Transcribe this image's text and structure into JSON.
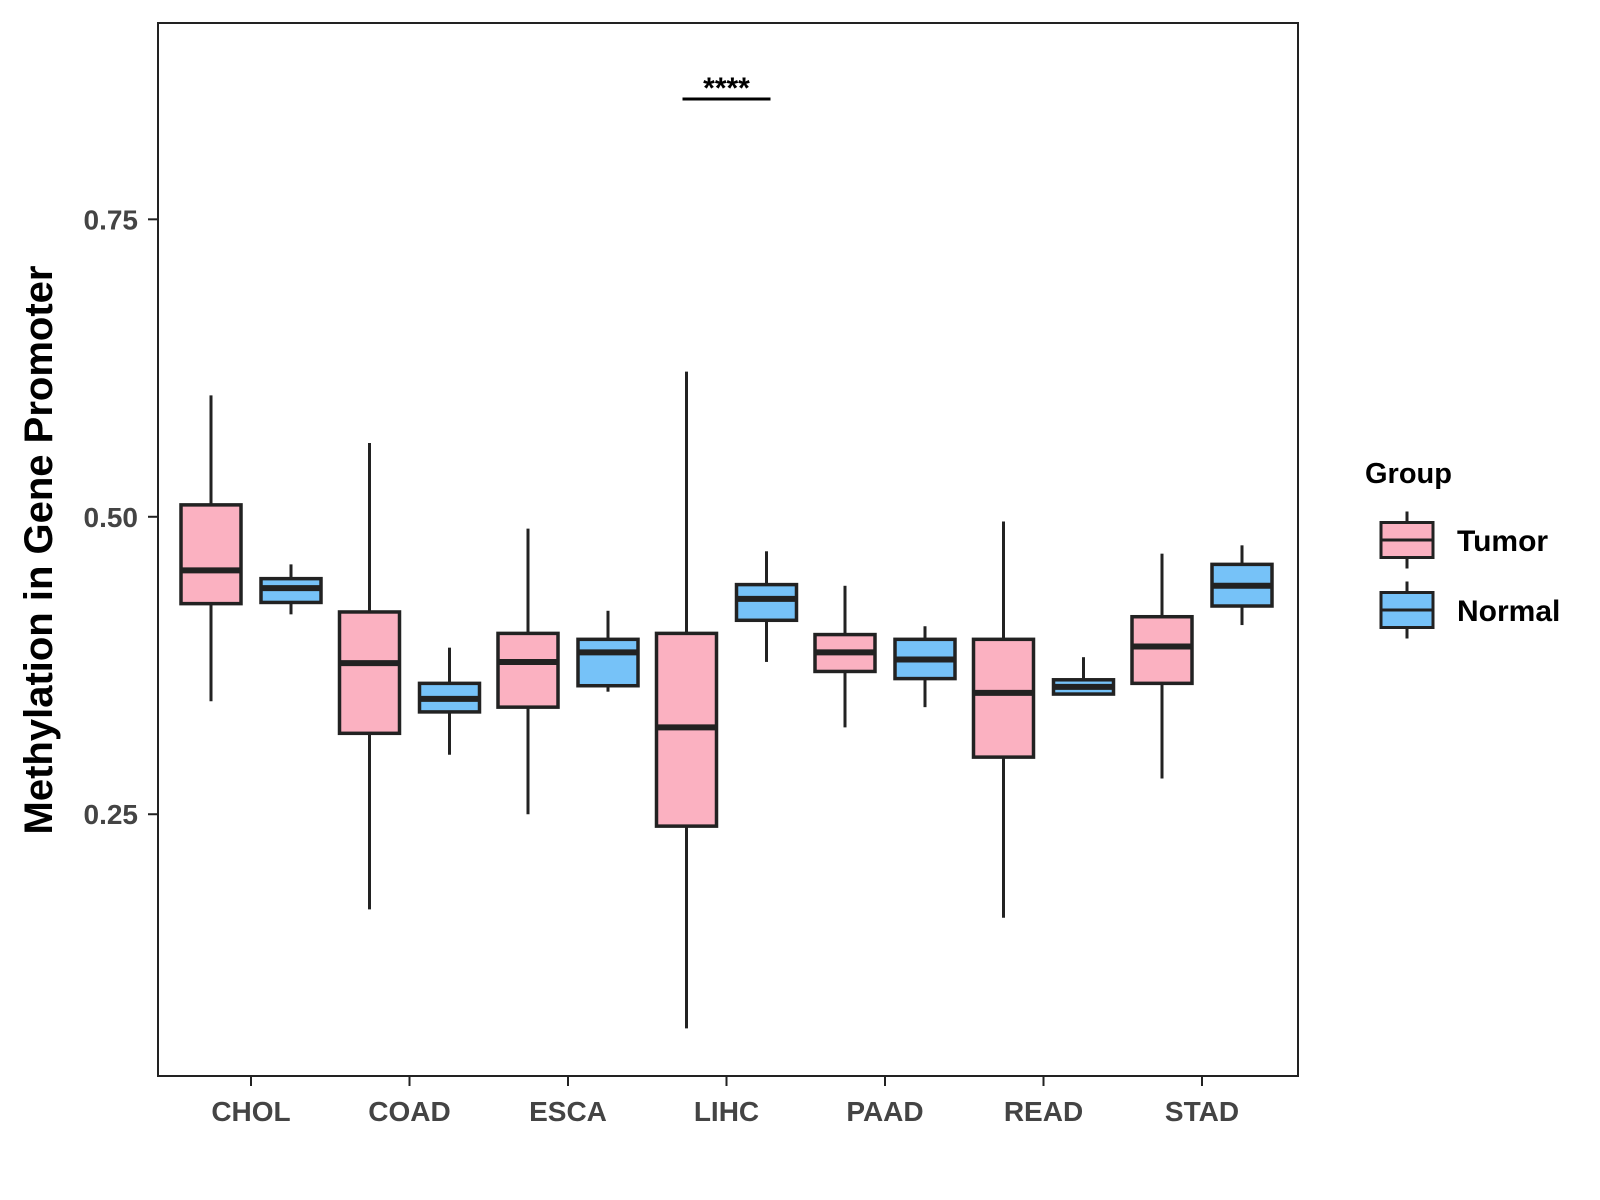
{
  "chart_data": {
    "type": "boxplot",
    "title": "",
    "xlabel": "",
    "ylabel": "Methylation in Gene Promoter",
    "ylim": [
      0.03,
      0.915
    ],
    "yticks": [
      {
        "value": 0.25,
        "label": "0.25"
      },
      {
        "value": 0.5,
        "label": "0.50"
      },
      {
        "value": 0.75,
        "label": "0.75"
      }
    ],
    "categories": [
      "CHOL",
      "COAD",
      "ESCA",
      "LIHC",
      "PAAD",
      "READ",
      "STAD"
    ],
    "legend": {
      "title": "Group",
      "position": "right",
      "entries": [
        {
          "label": "Tumor",
          "color": "#FBB1C1"
        },
        {
          "label": "Normal",
          "color": "#76C2F8"
        }
      ]
    },
    "series": [
      {
        "name": "Tumor",
        "color": "#FBB1C1",
        "boxes": [
          {
            "category": "CHOL",
            "min": 0.345,
            "q1": 0.427,
            "median": 0.455,
            "q3": 0.51,
            "max": 0.602
          },
          {
            "category": "COAD",
            "min": 0.17,
            "q1": 0.318,
            "median": 0.377,
            "q3": 0.42,
            "max": 0.562
          },
          {
            "category": "ESCA",
            "min": 0.25,
            "q1": 0.34,
            "median": 0.378,
            "q3": 0.402,
            "max": 0.49
          },
          {
            "category": "LIHC",
            "min": 0.07,
            "q1": 0.24,
            "median": 0.323,
            "q3": 0.402,
            "max": 0.622
          },
          {
            "category": "PAAD",
            "min": 0.323,
            "q1": 0.37,
            "median": 0.386,
            "q3": 0.401,
            "max": 0.442
          },
          {
            "category": "READ",
            "min": 0.163,
            "q1": 0.298,
            "median": 0.352,
            "q3": 0.397,
            "max": 0.496
          },
          {
            "category": "STAD",
            "min": 0.28,
            "q1": 0.36,
            "median": 0.391,
            "q3": 0.416,
            "max": 0.469
          }
        ]
      },
      {
        "name": "Normal",
        "color": "#76C2F8",
        "boxes": [
          {
            "category": "CHOL",
            "min": 0.418,
            "q1": 0.428,
            "median": 0.44,
            "q3": 0.448,
            "max": 0.46
          },
          {
            "category": "COAD",
            "min": 0.3,
            "q1": 0.336,
            "median": 0.347,
            "q3": 0.36,
            "max": 0.39
          },
          {
            "category": "ESCA",
            "min": 0.353,
            "q1": 0.358,
            "median": 0.386,
            "q3": 0.397,
            "max": 0.421
          },
          {
            "category": "LIHC",
            "min": 0.378,
            "q1": 0.413,
            "median": 0.431,
            "q3": 0.443,
            "max": 0.471
          },
          {
            "category": "PAAD",
            "min": 0.34,
            "q1": 0.364,
            "median": 0.38,
            "q3": 0.397,
            "max": 0.408
          },
          {
            "category": "READ",
            "min": 0.351,
            "q1": 0.351,
            "median": 0.357,
            "q3": 0.363,
            "max": 0.382
          },
          {
            "category": "STAD",
            "min": 0.409,
            "q1": 0.425,
            "median": 0.442,
            "q3": 0.46,
            "max": 0.476
          }
        ]
      }
    ],
    "annotations": [
      {
        "category": "LIHC",
        "text": "****",
        "y": 0.862
      }
    ]
  }
}
